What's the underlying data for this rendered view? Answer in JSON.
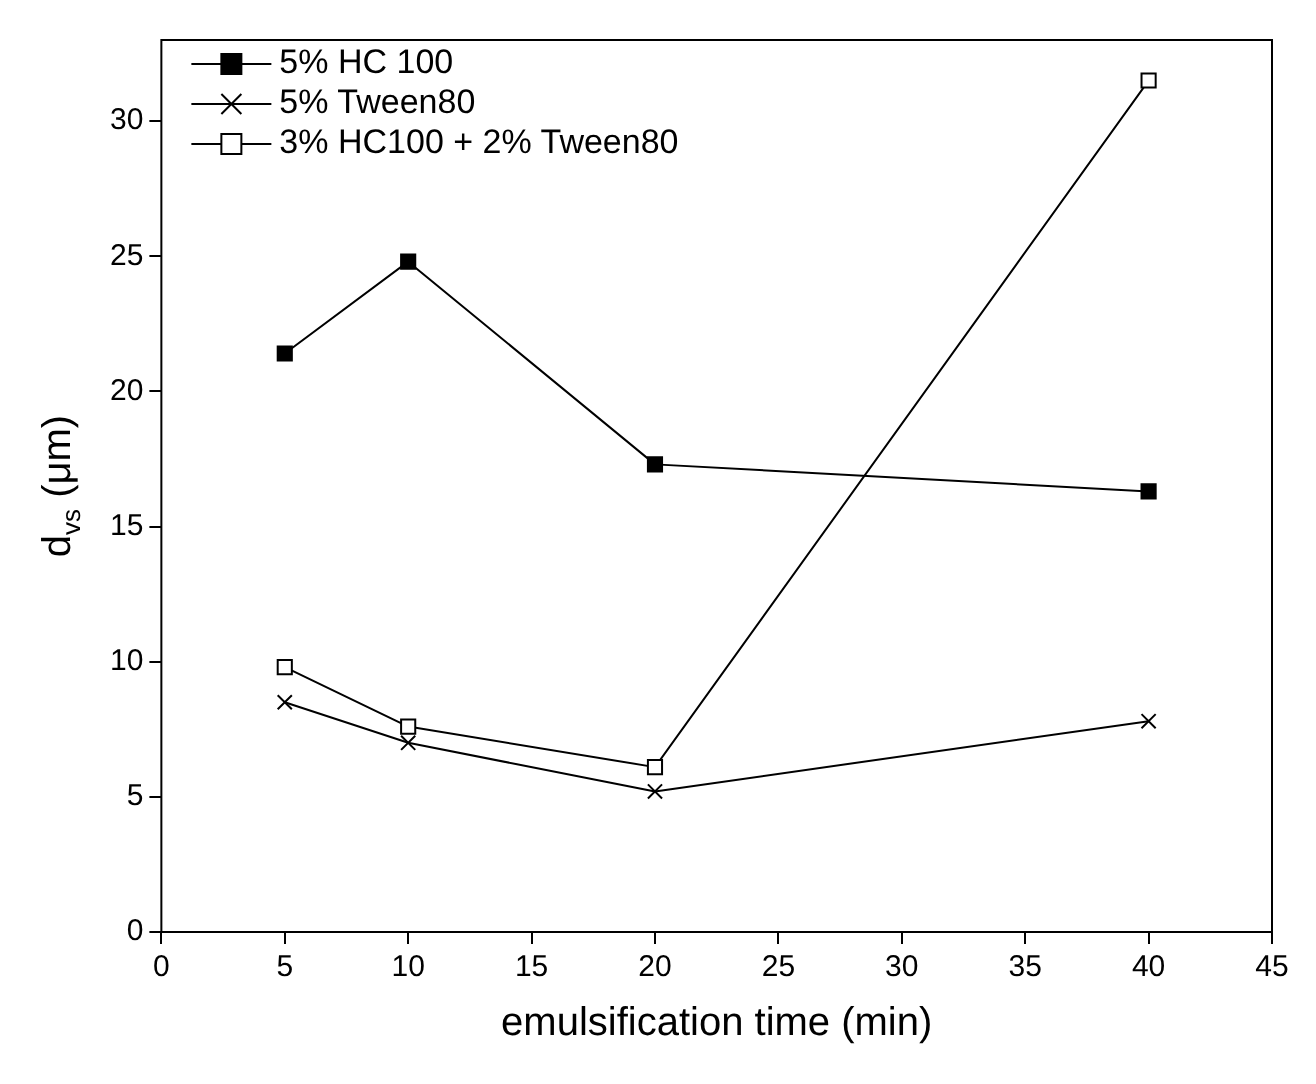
{
  "chart_data": {
    "type": "line",
    "xlabel": "emulsification time (min)",
    "ylabel": "d$_{vs}$ (μm)",
    "x": [
      5,
      10,
      20,
      40
    ],
    "series": [
      {
        "name": "5% HC 100",
        "color": "#000000",
        "values": [
          21.4,
          24.8,
          17.3,
          16.3
        ],
        "marker": "square"
      },
      {
        "name": "5% Tween80",
        "color": "#000000",
        "values": [
          8.5,
          7.0,
          5.2,
          7.8
        ],
        "marker": "cross"
      },
      {
        "name": "3% HC100 + 2% Tween80",
        "color": "#000000",
        "values": [
          9.8,
          7.6,
          6.1,
          31.5
        ],
        "marker": "square_open"
      }
    ],
    "xlim": [
      0,
      45
    ],
    "xticks": [
      0,
      5,
      10,
      15,
      20,
      25,
      30,
      35,
      40,
      45
    ],
    "ylim": [
      0,
      33
    ],
    "yticks": [
      0,
      5,
      10,
      15,
      20,
      25,
      30
    ],
    "grid": false,
    "legend": "top left",
    "line_style": "solid"
  }
}
